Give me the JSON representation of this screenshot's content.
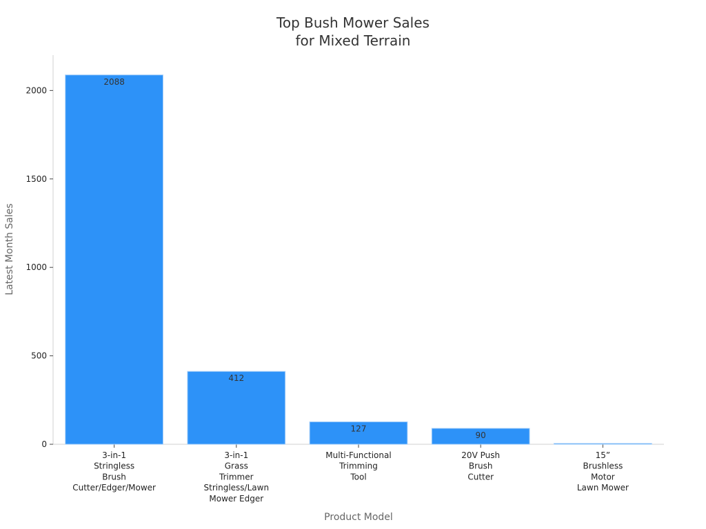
{
  "chart_data": {
    "type": "bar",
    "title_lines": [
      "Top Bush Mower Sales",
      "for Mixed Terrain"
    ],
    "xlabel": "Product Model",
    "ylabel": "Latest Month Sales",
    "categories": [
      [
        "3-in-1",
        "Stringless",
        "Brush",
        "Cutter/Edger/Mower"
      ],
      [
        "3-in-1",
        "Grass",
        "Trimmer",
        "Stringless/Lawn",
        "Mower Edger"
      ],
      [
        "Multi-Functional",
        "Trimming",
        "Tool"
      ],
      [
        "20V Push",
        "Brush",
        "Cutter"
      ],
      [
        "15”",
        "Brushless",
        "Motor",
        "Lawn Mower"
      ]
    ],
    "values": [
      2088,
      412,
      127,
      90,
      5
    ],
    "data_labels": [
      "2088",
      "412",
      "127",
      "90",
      ""
    ],
    "yticks": [
      0,
      500,
      1000,
      1500,
      2000
    ],
    "ylim": [
      0,
      2200
    ],
    "grid": false,
    "bar_color": "#2d92f8",
    "bar_edge_color": "#a8d0f8"
  }
}
